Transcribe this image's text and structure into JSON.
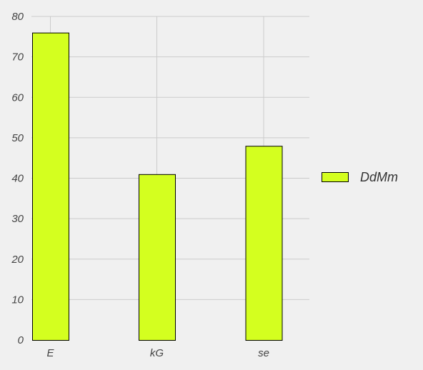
{
  "chart_data": {
    "type": "bar",
    "title": "",
    "xlabel": "",
    "ylabel": "",
    "categories": [
      "E",
      "kG",
      "se"
    ],
    "series": [
      {
        "name": "DdMm",
        "values": [
          76,
          41,
          48
        ],
        "color": "#d4ff1f"
      }
    ],
    "ylim": [
      0,
      80
    ],
    "yticks": [
      "0",
      "10",
      "20",
      "30",
      "40",
      "50",
      "60",
      "70",
      "80"
    ],
    "grid": true,
    "legend": "right",
    "colors": {
      "background": "#f0f0f0",
      "grid": "#cbcbcb",
      "bar_edge": "#000000"
    }
  }
}
